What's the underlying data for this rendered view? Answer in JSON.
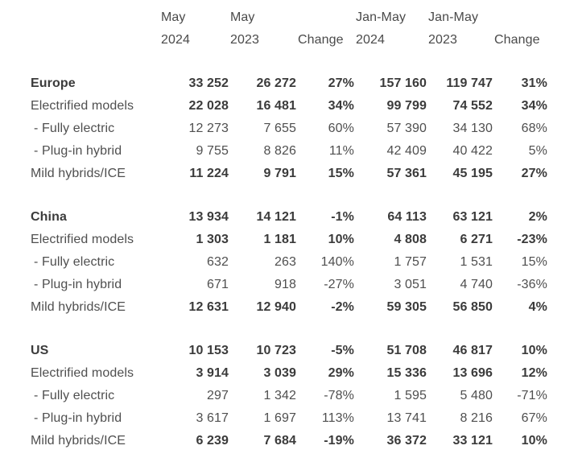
{
  "table": {
    "header": {
      "line1": [
        "May",
        "May",
        "",
        "Jan-May",
        "Jan-May",
        ""
      ],
      "line2": [
        "2024",
        "2023",
        "Change",
        "2024",
        "2023",
        "Change"
      ]
    },
    "sections": [
      {
        "region": "Europe",
        "rows": [
          {
            "label": "Europe",
            "values": [
              "33 252",
              "26 272",
              "27%",
              "157 160",
              "119 747",
              "31%"
            ]
          },
          {
            "label": "Electrified models",
            "values": [
              "22 028",
              "16 481",
              "34%",
              "99 799",
              "74 552",
              "34%"
            ]
          },
          {
            "label": "- Fully electric",
            "values": [
              "12 273",
              "7 655",
              "60%",
              "57 390",
              "34 130",
              "68%"
            ]
          },
          {
            "label": "- Plug-in hybrid",
            "values": [
              "9 755",
              "8 826",
              "11%",
              "42 409",
              "40 422",
              "5%"
            ]
          },
          {
            "label": "Mild hybrids/ICE",
            "values": [
              "11 224",
              "9 791",
              "15%",
              "57 361",
              "45 195",
              "27%"
            ]
          }
        ]
      },
      {
        "region": "China",
        "rows": [
          {
            "label": "China",
            "values": [
              "13 934",
              "14 121",
              "-1%",
              "64 113",
              "63 121",
              "2%"
            ]
          },
          {
            "label": "Electrified models",
            "values": [
              "1 303",
              "1 181",
              "10%",
              "4 808",
              "6 271",
              "-23%"
            ]
          },
          {
            "label": "- Fully electric",
            "values": [
              "632",
              "263",
              "140%",
              "1 757",
              "1 531",
              "15%"
            ]
          },
          {
            "label": "- Plug-in hybrid",
            "values": [
              "671",
              "918",
              "-27%",
              "3 051",
              "4 740",
              "-36%"
            ]
          },
          {
            "label": "Mild hybrids/ICE",
            "values": [
              "12 631",
              "12 940",
              "-2%",
              "59 305",
              "56 850",
              "4%"
            ]
          }
        ]
      },
      {
        "region": "US",
        "rows": [
          {
            "label": "US",
            "values": [
              "10 153",
              "10 723",
              "-5%",
              "51 708",
              "46 817",
              "10%"
            ]
          },
          {
            "label": "Electrified models",
            "values": [
              "3 914",
              "3 039",
              "29%",
              "15 336",
              "13 696",
              "12%"
            ]
          },
          {
            "label": "- Fully electric",
            "values": [
              "297",
              "1 342",
              "-78%",
              "1 595",
              "5 480",
              "-71%"
            ]
          },
          {
            "label": "- Plug-in hybrid",
            "values": [
              "3 617",
              "1 697",
              "113%",
              "13 741",
              "8 216",
              "67%"
            ]
          },
          {
            "label": "Mild hybrids/ICE",
            "values": [
              "6 239",
              "7 684",
              "-19%",
              "36 372",
              "33 121",
              "10%"
            ]
          }
        ]
      }
    ],
    "colors": {
      "background": "#ffffff",
      "text_bold": "#3b3b3b",
      "text_regular": "#4f4f4f",
      "text_header": "#4a4a4a"
    }
  }
}
